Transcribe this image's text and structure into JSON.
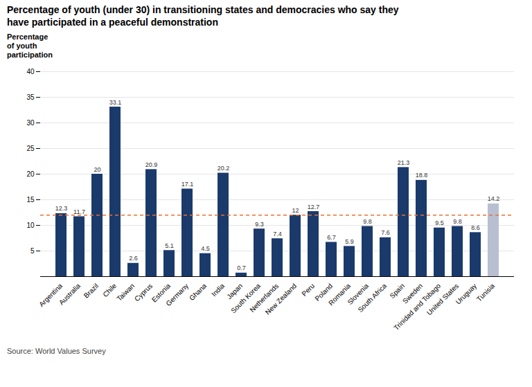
{
  "chart_data": {
    "type": "bar",
    "title": "Percentage of youth (under 30) in transitioning states and democracies who say they\nhave participated in a peaceful demonstration",
    "y_label": "Percentage\nof youth\nparticipation",
    "caption": "Source: World Values Survey",
    "categories": [
      "Argentina",
      "Australia",
      "Brazil",
      "Chile",
      "Taiwan",
      "Cyprus",
      "Estonia",
      "Germany",
      "Ghana",
      "India",
      "Japan",
      "South Korea",
      "Netherlands",
      "New Zealand",
      "Peru",
      "Poland",
      "Romania",
      "Slovenia",
      "South Africa",
      "Spain",
      "Sweden",
      "Trinidad and Tobago",
      "United States",
      "Uruguay",
      "Tunisia"
    ],
    "values": [
      12.3,
      11.7,
      20,
      33.1,
      2.6,
      20.9,
      5.1,
      17.1,
      4.5,
      20.2,
      0.7,
      9.3,
      7.4,
      12,
      12.7,
      6.7,
      5.9,
      9.8,
      7.6,
      21.3,
      18.8,
      9.5,
      9.8,
      8.6,
      14.2
    ],
    "colors": [
      "#1a3a6b",
      "#1a3a6b",
      "#1a3a6b",
      "#1a3a6b",
      "#1a3a6b",
      "#1a3a6b",
      "#1a3a6b",
      "#1a3a6b",
      "#1a3a6b",
      "#1a3a6b",
      "#1a3a6b",
      "#1a3a6b",
      "#1a3a6b",
      "#1a3a6b",
      "#1a3a6b",
      "#1a3a6b",
      "#1a3a6b",
      "#1a3a6b",
      "#1a3a6b",
      "#1a3a6b",
      "#1a3a6b",
      "#1a3a6b",
      "#1a3a6b",
      "#1a3a6b",
      "#b8bfd0"
    ],
    "reference_line": {
      "value": 12.0,
      "color": "#e87030",
      "line_style": "dashed"
    },
    "ylim": [
      0,
      40
    ],
    "yticks": [
      5,
      10,
      15,
      20,
      25,
      30,
      35,
      40
    ],
    "grid": true,
    "data_labels": true
  }
}
